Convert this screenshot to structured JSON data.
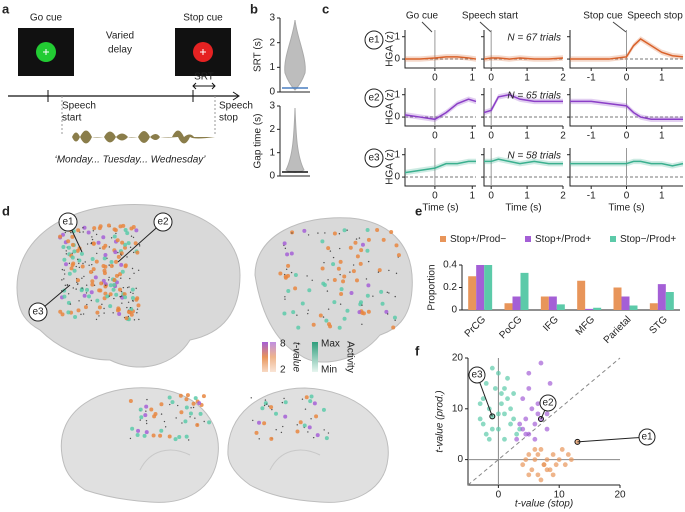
{
  "panels": {
    "labels": [
      "a",
      "b",
      "c",
      "d",
      "e",
      "f"
    ],
    "a": {
      "go_cue": "Go cue",
      "delay": [
        "Varied",
        "delay"
      ],
      "stop_cue": "Stop cue",
      "srt": "SRT",
      "speech_start": [
        "Speech",
        "start"
      ],
      "speech_stop": [
        "Speech",
        "stop"
      ],
      "phrase": "‘Monday... Tuesday... Wednesday’"
    },
    "c": {
      "go_cue": "Go cue",
      "speech_start": "Speech start",
      "stop_cue": "Stop cue",
      "speech_stop": "Speech stop",
      "rows": [
        "e1",
        "e2",
        "e3"
      ],
      "ylabel": "HGA (z)",
      "xlabel": "Time (s)",
      "n": [
        "N = 67 trials",
        "N = 65 trials",
        "N = 58 trials"
      ]
    },
    "d": {
      "electrodes": [
        "e1",
        "e2",
        "e3"
      ],
      "tvalue": "t-value",
      "tmax": 8,
      "tmin": 2,
      "activity": "Activity",
      "max": "Max",
      "min": "Min"
    }
  },
  "chart_data": [
    {
      "type": "line",
      "x": [
        -0.8,
        -0.4,
        0,
        0.3,
        0.6,
        0.9,
        1.1
      ],
      "series": [
        {
          "color": "#d9622b",
          "values": [
            0,
            0,
            0.05,
            0.1,
            0.1,
            0.05,
            0
          ]
        }
      ],
      "xlim": [
        -0.8,
        1.1
      ],
      "xticks": [
        0,
        1
      ],
      "ylim": [
        -0.4,
        1.3
      ],
      "yticks": [
        0,
        1
      ]
    },
    {
      "type": "line",
      "x": [
        -0.2,
        0,
        0.2,
        0.5,
        0.8,
        1.2,
        1.6,
        2
      ],
      "series": [
        {
          "color": "#d9622b",
          "values": [
            0,
            0.05,
            0.05,
            0,
            0.05,
            0,
            0,
            0.05
          ]
        }
      ],
      "xlim": [
        -0.2,
        2
      ],
      "xticks": [
        0,
        1,
        2
      ],
      "ylim": [
        -0.4,
        1.3
      ],
      "yticks": [
        0,
        1
      ]
    },
    {
      "type": "line",
      "x": [
        -1.6,
        -1,
        -0.5,
        0,
        0.2,
        0.4,
        0.7,
        1,
        1.3,
        1.6
      ],
      "series": [
        {
          "color": "#d9622b",
          "values": [
            0,
            0,
            0,
            0.1,
            0.6,
            0.9,
            0.6,
            0.3,
            0.15,
            0.1
          ]
        }
      ],
      "xlim": [
        -1.6,
        1.6
      ],
      "xticks": [
        -1,
        0,
        1
      ],
      "ylim": [
        -0.4,
        1.3
      ],
      "yticks": [
        0,
        1
      ]
    },
    {
      "type": "line",
      "x": [
        -0.8,
        -0.4,
        0,
        0.3,
        0.6,
        0.9,
        1.1
      ],
      "series": [
        {
          "color": "#8b3fc7",
          "values": [
            0.1,
            0,
            -0.1,
            0.2,
            0.6,
            0.8,
            0.7
          ]
        }
      ],
      "xlim": [
        -0.8,
        1.1
      ],
      "xticks": [
        0,
        1
      ],
      "ylim": [
        -0.4,
        1.3
      ],
      "yticks": [
        0,
        1
      ]
    },
    {
      "type": "line",
      "x": [
        -0.2,
        0,
        0.2,
        0.5,
        0.8,
        1.2,
        1.6,
        2
      ],
      "series": [
        {
          "color": "#8b3fc7",
          "values": [
            0.2,
            0.3,
            0.9,
            1.0,
            0.8,
            0.7,
            0.7,
            0.7
          ]
        }
      ],
      "xlim": [
        -0.2,
        2
      ],
      "xticks": [
        0,
        1,
        2
      ],
      "ylim": [
        -0.4,
        1.3
      ],
      "yticks": [
        0,
        1
      ]
    },
    {
      "type": "line",
      "x": [
        -1.6,
        -1,
        -0.5,
        0,
        0.2,
        0.4,
        0.7,
        1,
        1.3,
        1.6
      ],
      "series": [
        {
          "color": "#8b3fc7",
          "values": [
            0.7,
            0.7,
            0.6,
            0.5,
            0.2,
            0,
            -0.1,
            -0.1,
            -0.1,
            -0.1
          ]
        }
      ],
      "xlim": [
        -1.6,
        1.6
      ],
      "xticks": [
        -1,
        0,
        1
      ],
      "ylim": [
        -0.4,
        1.3
      ],
      "yticks": [
        0,
        1
      ]
    },
    {
      "type": "line",
      "x": [
        -0.8,
        -0.4,
        0,
        0.3,
        0.6,
        0.9,
        1.1
      ],
      "series": [
        {
          "color": "#3bb08f",
          "values": [
            0.2,
            0.3,
            0.4,
            0.6,
            0.6,
            0.7,
            0.7
          ]
        }
      ],
      "xlim": [
        -0.8,
        1.1
      ],
      "xticks": [
        0,
        1
      ],
      "ylim": [
        -0.4,
        1.3
      ],
      "yticks": [
        0,
        1
      ]
    },
    {
      "type": "line",
      "x": [
        -0.2,
        0,
        0.2,
        0.5,
        0.8,
        1.2,
        1.6,
        2
      ],
      "series": [
        {
          "color": "#3bb08f",
          "values": [
            0.7,
            0.7,
            0.8,
            0.7,
            0.6,
            0.7,
            0.6,
            0.6
          ]
        }
      ],
      "xlim": [
        -0.2,
        2
      ],
      "xticks": [
        0,
        1,
        2
      ],
      "ylim": [
        -0.4,
        1.3
      ],
      "yticks": [
        0,
        1
      ]
    },
    {
      "type": "line",
      "x": [
        -1.6,
        -1,
        -0.5,
        0,
        0.2,
        0.4,
        0.7,
        1,
        1.3,
        1.6
      ],
      "series": [
        {
          "color": "#3bb08f",
          "values": [
            0.6,
            0.6,
            0.6,
            0.6,
            0.7,
            0.7,
            0.6,
            0.6,
            0.5,
            0.6
          ]
        }
      ],
      "xlim": [
        -1.6,
        1.6
      ],
      "xticks": [
        -1,
        0,
        1
      ],
      "ylim": [
        -0.4,
        1.3
      ],
      "yticks": [
        0,
        1
      ]
    },
    {
      "type": "bar",
      "categories": [
        "PrCG",
        "PoCG",
        "IFG",
        "MFG",
        "Parietal",
        "STG"
      ],
      "ylabel": "Proportion",
      "ylim": [
        0,
        0.4
      ],
      "yticks": [
        0,
        0.2,
        0.4
      ],
      "series": [
        {
          "name": "Stop+/Prod−",
          "color": "#e8955a",
          "values": [
            0.3,
            0.06,
            0.12,
            0.26,
            0.2,
            0.06
          ]
        },
        {
          "name": "Stop+/Prod+",
          "color": "#a45fd6",
          "values": [
            0.4,
            0.12,
            0.12,
            0.01,
            0.12,
            0.23
          ]
        },
        {
          "name": "Stop−/Prod+",
          "color": "#5ccaa9",
          "values": [
            0.4,
            0.33,
            0.05,
            0.02,
            0.04,
            0.16
          ]
        }
      ]
    },
    {
      "type": "scatter",
      "xlabel": "t-value (stop)",
      "ylabel": "t-value (prod.)",
      "annotations": [
        "e1",
        "e2",
        "e3"
      ],
      "xlim": [
        -5,
        20
      ],
      "xticks": [
        0,
        10,
        20
      ],
      "ylim": [
        -5,
        20
      ],
      "yticks": [
        0,
        10,
        20
      ],
      "series": [
        {
          "color": "#5ccaa9",
          "x": [
            -3,
            -2.5,
            -2,
            -1.5,
            -1,
            -0.5,
            0,
            0.5,
            1,
            1.5,
            2,
            2.5,
            3,
            -2,
            -1,
            0,
            1,
            2,
            -3,
            -1,
            0.5,
            1.5,
            -2.5,
            0,
            2.5,
            -1.5,
            1,
            3.5
          ],
          "values": [
            8,
            12,
            5,
            10,
            8.5,
            14,
            6,
            11,
            9,
            16,
            7,
            13,
            5,
            15,
            18,
            9,
            4,
            10,
            11,
            6,
            13,
            12,
            7,
            17,
            8,
            4,
            14,
            6
          ]
        },
        {
          "color": "#e8955a",
          "x": [
            4,
            5,
            5.5,
            6,
            6.5,
            7,
            7.5,
            8,
            8.5,
            9,
            9.5,
            10,
            10.5,
            11,
            12,
            13,
            5,
            6,
            7,
            8,
            9,
            4.5,
            6.5,
            7.5,
            11.5
          ],
          "values": [
            -1,
            1,
            -2,
            0,
            -3,
            2,
            -1,
            0,
            -2,
            1,
            -1,
            0,
            2,
            -1,
            0,
            3.5,
            -3,
            2,
            -4,
            -2,
            -3,
            0,
            1,
            -1,
            1
          ]
        },
        {
          "color": "#a45fd6",
          "x": [
            3,
            4,
            4.5,
            5,
            5.5,
            6,
            6.5,
            7,
            7.5,
            8,
            8.5,
            4,
            5,
            6,
            7,
            3.5,
            8,
            5,
            6.5,
            4.5
          ],
          "values": [
            4,
            6,
            8,
            5,
            10,
            7,
            9,
            8,
            12,
            6,
            15,
            12,
            14,
            4,
            19,
            7,
            9,
            17,
            11,
            5
          ]
        }
      ]
    },
    {
      "type": "violin",
      "ylabel": "SRT (s)",
      "ylim": [
        0,
        3
      ],
      "yticks": [
        0,
        1,
        2,
        3
      ]
    },
    {
      "type": "violin",
      "ylabel": "Gap time (s)",
      "ylim": [
        0,
        3
      ],
      "yticks": [
        0,
        1,
        2,
        3
      ]
    }
  ]
}
